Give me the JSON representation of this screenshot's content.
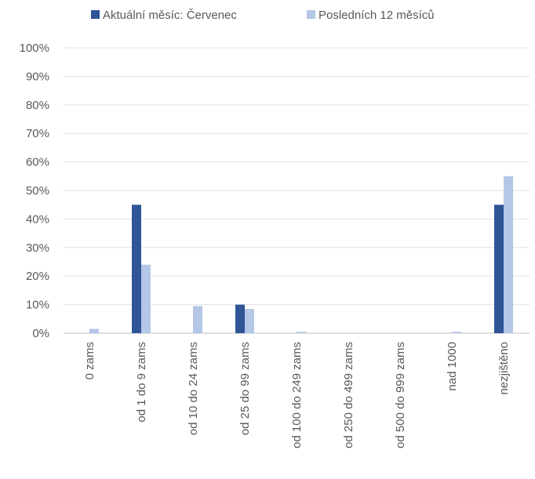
{
  "chart_data": {
    "type": "bar",
    "categories": [
      "0 zams",
      "od 1 do 9 zams",
      "od 10 do 24 zams",
      "od 25 do 99 zams",
      "od 100 do 249 zams",
      "od 250 do 499 zams",
      "od 500 do 999 zams",
      "nad 1000",
      "nezjištěno"
    ],
    "series": [
      {
        "name": "Aktuální měsíc: Červenec",
        "values": [
          0,
          45,
          0,
          10,
          0,
          0,
          0,
          0,
          45
        ],
        "color": "#2f5597"
      },
      {
        "name": "Posledních 12 měsíců",
        "values": [
          1.5,
          24,
          9.5,
          8.5,
          0.5,
          0,
          0,
          0.5,
          55
        ],
        "color": "#b4c7e7"
      }
    ],
    "ylim": [
      0,
      100
    ],
    "yticks": [
      "0%",
      "10%",
      "20%",
      "30%",
      "40%",
      "50%",
      "60%",
      "70%",
      "80%",
      "90%",
      "100%"
    ],
    "grid": true,
    "legend_position": "top"
  }
}
